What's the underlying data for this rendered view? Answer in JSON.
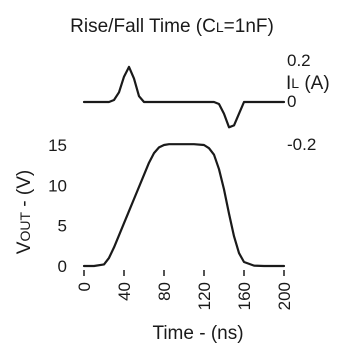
{
  "chart_data": {
    "type": "line",
    "title": "Rise/Fall Time (C",
    "title_sub": "L",
    "title_tail": "=1nF)",
    "xlabel": "Time - (ns)",
    "xlim": [
      0,
      200
    ],
    "x_ticks": [
      0,
      40,
      80,
      120,
      160,
      200
    ],
    "series": [
      {
        "name": "VOUT",
        "ylabel": "VOUT - (V)",
        "ylabel_main": "V",
        "ylabel_sub": "OUT",
        "ylabel_tail": " - (V)",
        "ylim": [
          0,
          16
        ],
        "y_ticks": [
          0,
          5,
          10,
          15
        ],
        "x": [
          0,
          10,
          20,
          25,
          30,
          40,
          50,
          60,
          65,
          70,
          75,
          80,
          85,
          90,
          100,
          110,
          120,
          125,
          130,
          135,
          140,
          145,
          150,
          155,
          160,
          170,
          180,
          190,
          200
        ],
        "values": [
          0,
          0,
          0.2,
          1.0,
          2.3,
          5.3,
          8.3,
          11.3,
          12.8,
          14.0,
          14.7,
          15.0,
          15.1,
          15.1,
          15.1,
          15.1,
          15.0,
          14.6,
          13.8,
          12.0,
          9.5,
          6.5,
          3.7,
          1.6,
          0.5,
          0.05,
          0,
          0,
          0
        ]
      },
      {
        "name": "IL",
        "ylabel": "IL (A)",
        "ylabel_main": "I",
        "ylabel_sub": "L",
        "ylabel_tail": " (A)",
        "ylim": [
          -0.2,
          0.2
        ],
        "y_ticks": [
          0.2,
          0,
          -0.2
        ],
        "x": [
          0,
          25,
          30,
          35,
          40,
          45,
          50,
          55,
          60,
          100,
          130,
          135,
          140,
          145,
          150,
          155,
          160,
          180,
          200
        ],
        "values": [
          0,
          0,
          0.01,
          0.05,
          0.13,
          0.18,
          0.12,
          0.03,
          0,
          0,
          0,
          -0.01,
          -0.06,
          -0.13,
          -0.12,
          -0.06,
          0,
          0,
          0
        ]
      }
    ]
  }
}
